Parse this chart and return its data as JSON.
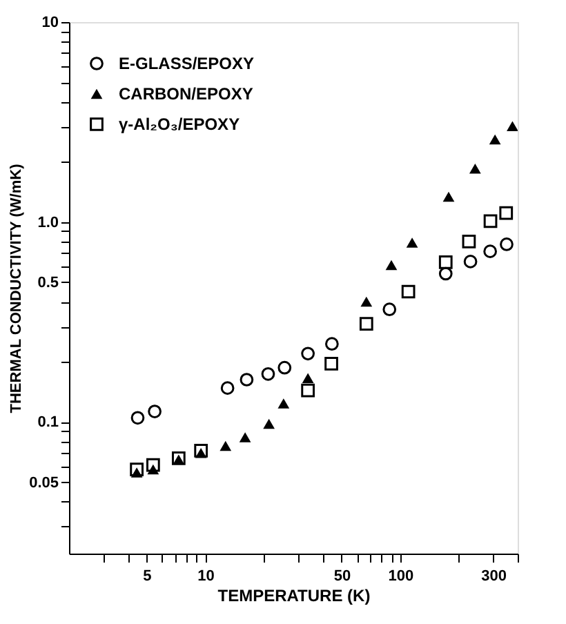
{
  "chart_data": {
    "type": "scatter",
    "xlabel": "TEMPERATURE (K)",
    "ylabel": "THERMAL CONDUCTIVITY (W/mK)",
    "log": "xy",
    "grid": false,
    "legend": "top left",
    "xlim": [
      2,
      400
    ],
    "ylim": [
      0.022,
      10
    ],
    "xticks": [
      {
        "value": 3,
        "label": null
      },
      {
        "value": 4,
        "label": null
      },
      5,
      {
        "value": 6,
        "label": null
      },
      {
        "value": 7,
        "label": null
      },
      {
        "value": 8,
        "label": null
      },
      {
        "value": 9,
        "label": null
      },
      10,
      {
        "value": 20,
        "label": null
      },
      {
        "value": 30,
        "label": null
      },
      {
        "value": 40,
        "label": null
      },
      50,
      {
        "value": 60,
        "label": null
      },
      {
        "value": 70,
        "label": null
      },
      {
        "value": 80,
        "label": null
      },
      {
        "value": 90,
        "label": null
      },
      100,
      {
        "value": 200,
        "label": null
      },
      300,
      {
        "value": 400,
        "label": null
      }
    ],
    "yticks": [
      {
        "value": 0.03,
        "label": null
      },
      {
        "value": 0.04,
        "label": null
      },
      0.05,
      {
        "value": 0.06,
        "label": null
      },
      {
        "value": 0.07,
        "label": null
      },
      {
        "value": 0.08,
        "label": null
      },
      {
        "value": 0.09,
        "label": null
      },
      0.1,
      {
        "value": 0.2,
        "label": null
      },
      {
        "value": 0.3,
        "label": null
      },
      {
        "value": 0.4,
        "label": null
      },
      0.5,
      {
        "value": 0.6,
        "label": null
      },
      {
        "value": 0.7,
        "label": null
      },
      {
        "value": 0.8,
        "label": null
      },
      {
        "value": 0.9,
        "label": null
      },
      {
        "value": 1,
        "label": "1.0"
      },
      {
        "value": 2,
        "label": null
      },
      {
        "value": 3,
        "label": null
      },
      {
        "value": 4,
        "label": null
      },
      {
        "value": 5,
        "label": null
      },
      {
        "value": 6,
        "label": null
      },
      {
        "value": 7,
        "label": null
      },
      {
        "value": 8,
        "label": null
      },
      {
        "value": 9,
        "label": null
      },
      10
    ],
    "series": [
      {
        "name": "E-GLASS/EPOXY",
        "color": "#000000",
        "marker": "circle",
        "x": [
          4.5,
          5.5,
          13,
          16.3,
          21,
          25.5,
          33.6,
          44.6,
          88,
          171,
          229,
          289,
          351
        ],
        "values": [
          0.105,
          0.113,
          0.148,
          0.163,
          0.174,
          0.187,
          0.22,
          0.246,
          0.366,
          0.552,
          0.635,
          0.714,
          0.774
        ]
      },
      {
        "name": "CARBON/EPOXY",
        "color": "#000000",
        "marker": "triangle",
        "x": [
          4.45,
          5.4,
          7.3,
          9.5,
          12.7,
          16,
          21.2,
          25.2,
          33.6,
          67,
          90,
          115,
          177,
          242,
          306,
          376
        ],
        "values": [
          0.056,
          0.058,
          0.065,
          0.07,
          0.076,
          0.084,
          0.098,
          0.124,
          0.166,
          0.4,
          0.61,
          0.79,
          1.34,
          1.85,
          2.59,
          3.02
        ]
      },
      {
        "name": "γ-Al₂O₃/EPOXY",
        "color": "#000000",
        "marker": "square",
        "x": [
          4.45,
          5.4,
          7.3,
          9.5,
          33.6,
          44.3,
          67,
          110,
          171,
          225,
          290,
          349
        ],
        "values": [
          0.058,
          0.061,
          0.066,
          0.072,
          0.144,
          0.196,
          0.31,
          0.449,
          0.63,
          0.8,
          1.01,
          1.11
        ]
      }
    ]
  }
}
